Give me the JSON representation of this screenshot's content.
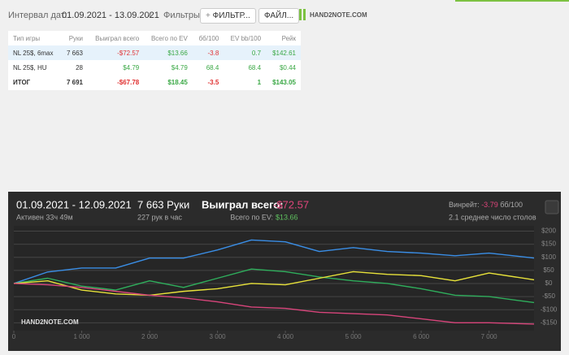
{
  "header": {
    "date_label": "Интервал дат:",
    "date_range": "01.09.2021 - 13.09.2021",
    "filters_label": "Фильтры:",
    "filter_button": "ФИЛЬТР...",
    "file_button": "ФАЙЛ...",
    "logo": "HAND2NOTE.COM"
  },
  "table": {
    "columns": [
      "Тип игры",
      "Руки",
      "Выиграл всего",
      "Всего по EV",
      "бб/100",
      "EV bb/100",
      "Рейк"
    ],
    "rows": [
      [
        "NL 25$, 6max",
        "7 663",
        "-$72.57",
        "$13.66",
        "-3.8",
        "0.7",
        "$142.61"
      ],
      [
        "NL 25$, HU",
        "28",
        "$4.79",
        "$4.79",
        "68.4",
        "68.4",
        "$0.44"
      ],
      [
        "ИТОГ",
        "7 691",
        "-$67.78",
        "$18.45",
        "-3.5",
        "1",
        "$143.05"
      ]
    ]
  },
  "summary": {
    "dates": "01.09.2021 - 12.09.2021",
    "active": "Активен 33ч 49м",
    "hands": "7 663 Руки",
    "per_hour": "227 рук в час",
    "won_label": "Выиграл всего:",
    "won_value": "-$72.57",
    "ev_label": "Всего по EV:",
    "ev_value": "$13.66",
    "winrate_label": "Винрейт:",
    "winrate_value": "-3.79",
    "winrate_unit": "бб/100",
    "tables": "2.1 среднее число столов",
    "watermark": "HAND2NOTE.COM"
  },
  "chart_data": {
    "type": "line",
    "x": [
      0,
      500,
      1000,
      1500,
      2000,
      2500,
      3000,
      3500,
      4000,
      4500,
      5000,
      5500,
      6000,
      6500,
      7000,
      7663
    ],
    "series": [
      {
        "color": "#3a8ee6",
        "values": [
          0,
          44,
          59,
          59,
          97,
          97,
          128,
          166,
          159,
          122,
          137,
          122,
          116,
          106,
          116,
          97
        ]
      },
      {
        "color": "#2fae5c",
        "values": [
          0,
          20,
          -10,
          -25,
          10,
          -15,
          20,
          55,
          45,
          25,
          10,
          0,
          -20,
          -45,
          -50,
          -73
        ]
      },
      {
        "color": "#e8e23a",
        "values": [
          0,
          10,
          -25,
          -40,
          -45,
          -30,
          -20,
          0,
          -5,
          20,
          45,
          35,
          30,
          10,
          40,
          14
        ]
      },
      {
        "color": "#d8457b",
        "values": [
          0,
          -5,
          -15,
          -30,
          -45,
          -55,
          -70,
          -90,
          -95,
          -110,
          -115,
          -120,
          -135,
          -150,
          -150,
          -155
        ]
      }
    ],
    "xlim": [
      0,
      7663
    ],
    "ylim": [
      -180,
      220
    ],
    "xticks": [
      0,
      {
        "value": 1000,
        "label": "1 000"
      },
      {
        "value": 2000,
        "label": "2 000"
      },
      {
        "value": 3000,
        "label": "3 000"
      },
      {
        "value": 4000,
        "label": "4 000"
      },
      {
        "value": 5000,
        "label": "5 000"
      },
      {
        "value": 6000,
        "label": "6 000"
      },
      {
        "value": 7000,
        "label": "7 000"
      }
    ],
    "yticks": [
      {
        "value": 200,
        "label": "$200"
      },
      {
        "value": 150,
        "label": "$150"
      },
      {
        "value": 100,
        "label": "$100"
      },
      {
        "value": 50,
        "label": "$50"
      },
      {
        "value": 0,
        "label": "$0"
      },
      {
        "value": -50,
        "label": "-$50"
      },
      {
        "value": -100,
        "label": "-$100"
      },
      {
        "value": -150,
        "label": "-$150"
      }
    ],
    "grid": true
  }
}
